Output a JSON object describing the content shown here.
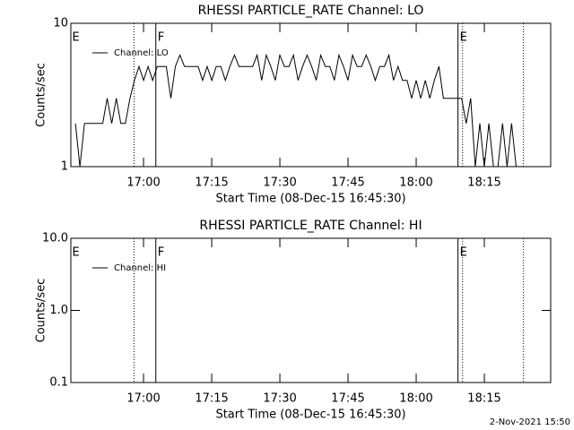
{
  "chart_data": [
    {
      "type": "line",
      "title": "RHESSI PARTICLE_RATE Channel: LO",
      "xlabel": "Start Time (08-Dec-15 16:45:30)",
      "ylabel": "Counts/sec",
      "log_y": true,
      "ylim": [
        1,
        10
      ],
      "yticks": [
        1,
        10
      ],
      "xlim": [
        1004,
        1109.6
      ],
      "xticks": [
        {
          "value": 1020,
          "label": "17:00"
        },
        {
          "value": 1035,
          "label": "17:15"
        },
        {
          "value": 1050,
          "label": "17:30"
        },
        {
          "value": 1065,
          "label": "17:45"
        },
        {
          "value": 1080,
          "label": "18:00"
        },
        {
          "value": 1095,
          "label": "18:15"
        }
      ],
      "flags": [
        {
          "x": 1017.9,
          "style": "dotted"
        },
        {
          "x": 1022.7,
          "style": "solid"
        },
        {
          "x": 1089.2,
          "style": "solid"
        },
        {
          "x": 1090.2,
          "style": "dotted"
        },
        {
          "x": 1103.6,
          "style": "dotted"
        }
      ],
      "flag_labels": [
        {
          "x": 1004.3,
          "label": "E"
        },
        {
          "x": 1023.1,
          "label": "F"
        },
        {
          "x": 1089.6,
          "label": "E"
        }
      ],
      "series": [
        {
          "name": "Channel: LO",
          "color": "#000000",
          "x": [
            1005,
            1006,
            1007,
            1008,
            1009,
            1010,
            1011,
            1012,
            1013,
            1014,
            1015,
            1016,
            1017,
            1018,
            1019,
            1020,
            1021,
            1022,
            1023,
            1024,
            1025,
            1026,
            1027,
            1028,
            1029,
            1030,
            1031,
            1032,
            1033,
            1034,
            1035,
            1036,
            1037,
            1038,
            1039,
            1040,
            1041,
            1042,
            1043,
            1044,
            1045,
            1046,
            1047,
            1048,
            1049,
            1050,
            1051,
            1052,
            1053,
            1054,
            1055,
            1056,
            1057,
            1058,
            1059,
            1060,
            1061,
            1062,
            1063,
            1064,
            1065,
            1066,
            1067,
            1068,
            1069,
            1070,
            1071,
            1072,
            1073,
            1074,
            1075,
            1076,
            1077,
            1078,
            1079,
            1080,
            1081,
            1082,
            1083,
            1084,
            1085,
            1086,
            1087,
            1088,
            1089,
            1090,
            1091,
            1092,
            1093,
            1094,
            1095,
            1096,
            1097,
            1098,
            1099,
            1100,
            1101,
            1102
          ],
          "values": [
            2,
            1,
            2,
            2,
            2,
            2,
            2,
            3,
            2,
            3,
            2,
            2,
            3,
            4,
            5,
            4,
            5,
            4,
            5,
            5,
            5,
            3,
            5,
            6,
            5,
            5,
            5,
            5,
            4,
            5,
            4,
            5,
            5,
            4,
            5,
            6,
            5,
            5,
            5,
            5,
            6,
            4,
            6,
            5,
            4,
            6,
            5,
            5,
            6,
            4,
            5,
            6,
            5,
            4,
            6,
            5,
            5,
            4,
            6,
            5,
            4,
            6,
            5,
            5,
            6,
            5,
            4,
            5,
            5,
            6,
            4,
            5,
            4,
            4,
            3,
            4,
            3,
            4,
            3,
            4,
            5,
            3,
            3,
            3,
            3,
            3,
            2,
            3,
            1,
            2,
            1,
            2,
            1,
            1,
            2,
            1,
            2,
            1
          ]
        }
      ]
    },
    {
      "type": "line",
      "title": "RHESSI PARTICLE_RATE Channel: HI",
      "xlabel": "Start Time (08-Dec-15 16:45:30)",
      "ylabel": "Counts/sec",
      "log_y": true,
      "ylim": [
        0.1,
        10
      ],
      "yticks": [
        {
          "value": 0.1,
          "label": "0.1"
        },
        {
          "value": 1,
          "label": "1.0"
        },
        {
          "value": 10,
          "label": "10.0"
        }
      ],
      "xlim": [
        1004,
        1109.6
      ],
      "xticks": [
        {
          "value": 1020,
          "label": "17:00"
        },
        {
          "value": 1035,
          "label": "17:15"
        },
        {
          "value": 1050,
          "label": "17:30"
        },
        {
          "value": 1065,
          "label": "17:45"
        },
        {
          "value": 1080,
          "label": "18:00"
        },
        {
          "value": 1095,
          "label": "18:15"
        }
      ],
      "flags": [
        {
          "x": 1017.9,
          "style": "dotted"
        },
        {
          "x": 1022.7,
          "style": "solid"
        },
        {
          "x": 1089.2,
          "style": "solid"
        },
        {
          "x": 1090.2,
          "style": "dotted"
        },
        {
          "x": 1103.6,
          "style": "dotted"
        }
      ],
      "flag_labels": [
        {
          "x": 1004.3,
          "label": "E"
        },
        {
          "x": 1023.1,
          "label": "F"
        },
        {
          "x": 1089.6,
          "label": "E"
        }
      ],
      "series": [
        {
          "name": "Channel: HI",
          "color": "#000000",
          "x": [],
          "values": []
        }
      ]
    }
  ],
  "footer": "2-Nov-2021 15:50"
}
